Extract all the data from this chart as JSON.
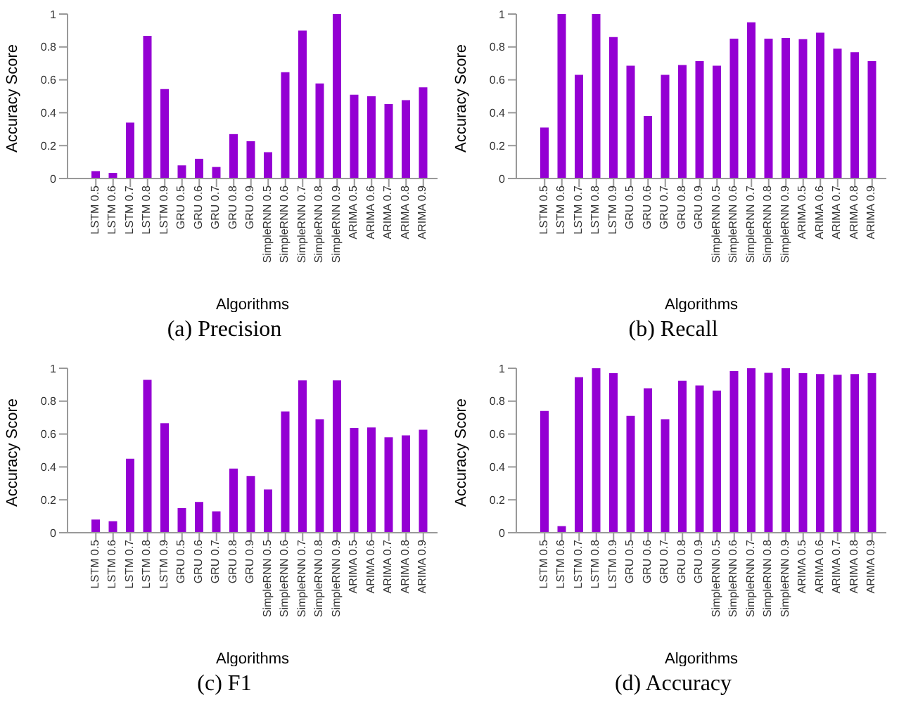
{
  "chart_data": [
    {
      "type": "bar",
      "title": "(a) Precision",
      "xlabel": "Algorithms",
      "ylabel": "Accuracy Score",
      "categories": [
        "LSTM 0.5",
        "LSTM 0.6",
        "LSTM 0.7",
        "LSTM 0.8",
        "LSTM 0.9",
        "GRU 0.5",
        "GRU 0.6",
        "GRU 0.7",
        "GRU 0.8",
        "GRU 0.9",
        "SimpleRNN 0.5",
        "SimpleRNN 0.6",
        "SimpleRNN 0.7",
        "SimpleRNN 0.8",
        "SimpleRNN 0.9",
        "ARIMA 0.5",
        "ARIMA 0.6",
        "ARIMA 0.7",
        "ARIMA 0.8",
        "ARIMA 0.9"
      ],
      "color": "#9400d3",
      "values": [
        0.045,
        0.034,
        0.34,
        0.867,
        0.544,
        0.08,
        0.12,
        0.07,
        0.27,
        0.227,
        0.16,
        0.646,
        0.9,
        0.578,
        1.0,
        0.51,
        0.5,
        0.453,
        0.476,
        0.555
      ],
      "ylim": [
        0,
        1
      ],
      "yticks": [
        0,
        0.2,
        0.4,
        0.6,
        0.8,
        1
      ],
      "grid": false,
      "legend": false
    },
    {
      "type": "bar",
      "title": "(b) Recall",
      "xlabel": "Algorithms",
      "ylabel": "Accuracy Score",
      "categories": [
        "LSTM 0.5",
        "LSTM 0.6",
        "LSTM 0.7",
        "LSTM 0.8",
        "LSTM 0.9",
        "GRU 0.5",
        "GRU 0.6",
        "GRU 0.7",
        "GRU 0.8",
        "GRU 0.9",
        "SimpleRNN 0.5",
        "SimpleRNN 0.6",
        "SimpleRNN 0.7",
        "SimpleRNN 0.8",
        "SimpleRNN 0.9",
        "ARIMA 0.5",
        "ARIMA 0.6",
        "ARIMA 0.7",
        "ARIMA 0.8",
        "ARIMA 0.9"
      ],
      "color": "#9400d3",
      "values": [
        0.31,
        1.0,
        0.63,
        1.0,
        0.86,
        0.686,
        0.38,
        0.63,
        0.69,
        0.714,
        0.686,
        0.85,
        0.95,
        0.85,
        0.855,
        0.847,
        0.887,
        0.79,
        0.768,
        0.714
      ],
      "ylim": [
        0,
        1
      ],
      "yticks": [
        0,
        0.2,
        0.4,
        0.6,
        0.8,
        1
      ],
      "grid": false,
      "legend": false
    },
    {
      "type": "bar",
      "title": "(c) F1",
      "xlabel": "Algorithms",
      "ylabel": "Accuracy Score",
      "categories": [
        "LSTM 0.5",
        "LSTM 0.6",
        "LSTM 0.7",
        "LSTM 0.8",
        "LSTM 0.9",
        "GRU 0.5",
        "GRU 0.6",
        "GRU 0.7",
        "GRU 0.8",
        "GRU 0.9",
        "SimpleRNN 0.5",
        "SimpleRNN 0.6",
        "SimpleRNN 0.7",
        "SimpleRNN 0.8",
        "SimpleRNN 0.9",
        "ARIMA 0.5",
        "ARIMA 0.6",
        "ARIMA 0.7",
        "ARIMA 0.8",
        "ARIMA 0.9"
      ],
      "color": "#9400d3",
      "values": [
        0.08,
        0.07,
        0.45,
        0.93,
        0.666,
        0.15,
        0.187,
        0.13,
        0.39,
        0.345,
        0.263,
        0.737,
        0.926,
        0.69,
        0.926,
        0.637,
        0.64,
        0.58,
        0.592,
        0.626
      ],
      "ylim": [
        0,
        1
      ],
      "yticks": [
        0,
        0.2,
        0.4,
        0.6,
        0.8,
        1
      ],
      "grid": false,
      "legend": false
    },
    {
      "type": "bar",
      "title": "(d) Accuracy",
      "xlabel": "Algorithms",
      "ylabel": "Accuracy Score",
      "categories": [
        "LSTM 0.5",
        "LSTM 0.6",
        "LSTM 0.7",
        "LSTM 0.8",
        "LSTM 0.9",
        "GRU 0.5",
        "GRU 0.6",
        "GRU 0.7",
        "GRU 0.8",
        "GRU 0.9",
        "SimpleRNN 0.5",
        "SimpleRNN 0.6",
        "SimpleRNN 0.7",
        "SimpleRNN 0.8",
        "SimpleRNN 0.9",
        "ARIMA 0.5",
        "ARIMA 0.6",
        "ARIMA 0.7",
        "ARIMA 0.8",
        "ARIMA 0.9"
      ],
      "color": "#9400d3",
      "values": [
        0.74,
        0.04,
        0.946,
        1.0,
        0.97,
        0.71,
        0.878,
        0.69,
        0.924,
        0.895,
        0.864,
        0.983,
        1.0,
        0.972,
        1.0,
        0.97,
        0.965,
        0.96,
        0.965,
        0.97
      ],
      "ylim": [
        0,
        1
      ],
      "yticks": [
        0,
        0.2,
        0.4,
        0.6,
        0.8,
        1
      ],
      "grid": false,
      "legend": false
    }
  ]
}
